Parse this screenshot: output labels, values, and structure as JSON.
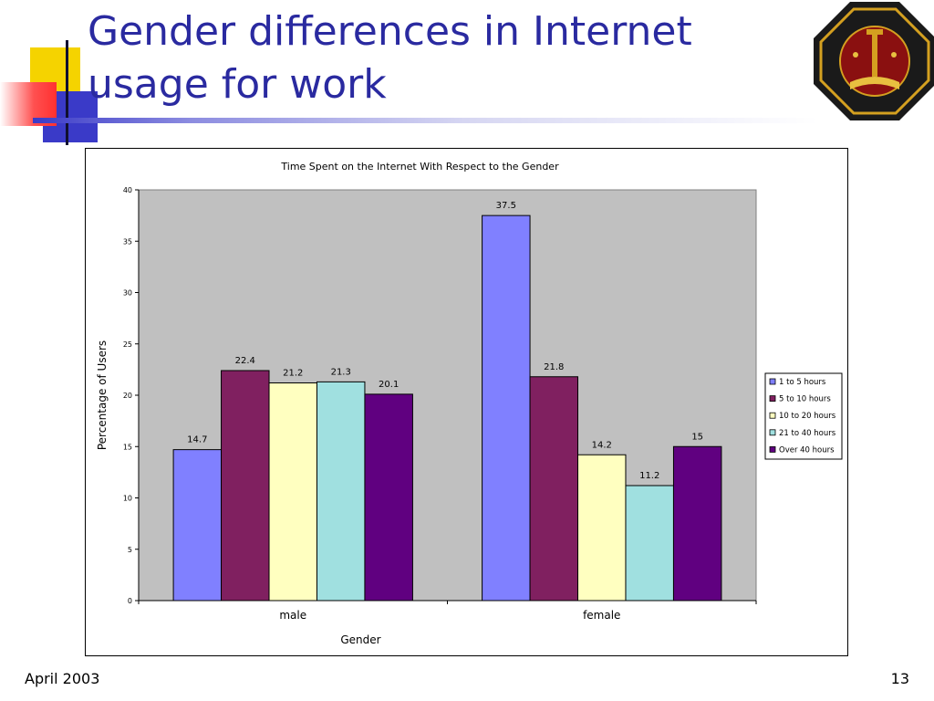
{
  "slide": {
    "title_line1": "Gender differences in Internet",
    "title_line2": "usage for work",
    "footer_date": "April 2003",
    "page_number": "13",
    "logo_icon": "university-seal-icon"
  },
  "colors": {
    "title": "#2a2aa0",
    "plot_bg": "#c0c0c0",
    "series": [
      "#8080ff",
      "#802060",
      "#ffffc0",
      "#a0e0e0",
      "#600080"
    ]
  },
  "chart_data": {
    "type": "bar",
    "title": "Time Spent on the Internet With Respect to the Gender",
    "xlabel": "Gender",
    "ylabel": "Percentage of Users",
    "categories": [
      "male",
      "female"
    ],
    "ylim": [
      0,
      40
    ],
    "yticks": [
      "0",
      "5",
      "10",
      "15",
      "20",
      "25",
      "30",
      "35",
      "40"
    ],
    "grid": false,
    "legend_position": "right",
    "series": [
      {
        "name": "1 to 5 hours",
        "values": [
          14.7,
          37.5
        ],
        "labels": [
          "14.7",
          "37.5"
        ]
      },
      {
        "name": "5 to 10 hours",
        "values": [
          22.4,
          21.8
        ],
        "labels": [
          "22.4",
          "21.8"
        ]
      },
      {
        "name": "10 to 20 hours",
        "values": [
          21.2,
          14.2
        ],
        "labels": [
          "21.2",
          "14.2"
        ]
      },
      {
        "name": "21 to 40 hours",
        "values": [
          21.3,
          11.2
        ],
        "labels": [
          "21.3",
          "11.2"
        ]
      },
      {
        "name": "Over 40 hours",
        "values": [
          20.1,
          15
        ],
        "labels": [
          "20.1",
          "15"
        ]
      }
    ]
  }
}
